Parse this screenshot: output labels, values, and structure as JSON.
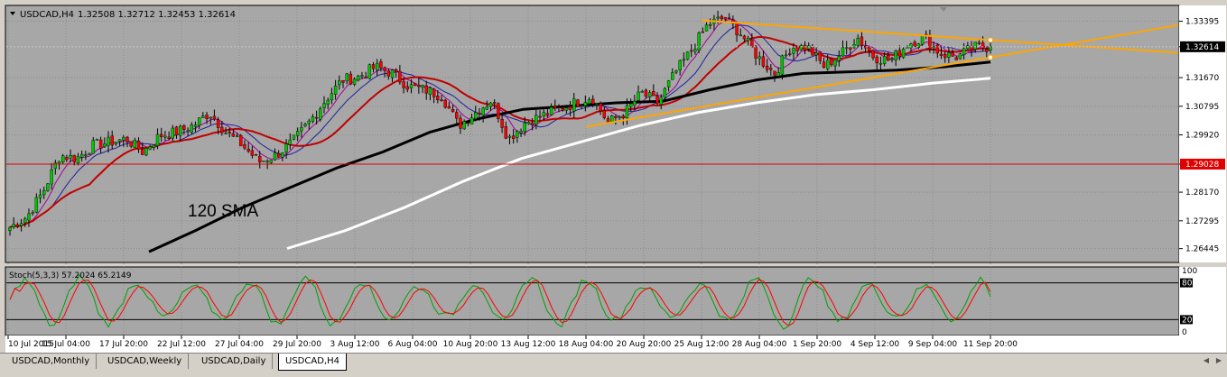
{
  "header": {
    "symbol": "USDCAD,H4",
    "ohlc": "1.32508 1.32712 1.32453 1.32614",
    "menu_icon": "triangle-down-icon"
  },
  "colors": {
    "background": "#a7a7a7",
    "bull_candle": "#00c800",
    "bear_candle": "#ff0000",
    "trendline": "#ffa500",
    "sma_black": "#000000",
    "sma_white": "#ffffff",
    "ma_red": "#c00000",
    "ma_blue": "#2020a0",
    "ma_purple": "#a000a0",
    "horizontal_level": "#dd0000",
    "price_label_bg": "#000000",
    "level_label_bg": "#e00000",
    "stoch_main": "#00a000",
    "stoch_signal": "#ff0000"
  },
  "annotation": "120 SMA",
  "tabs": [
    {
      "label": "USDCAD,Monthly",
      "active": false
    },
    {
      "label": "USDCAD,Weekly",
      "active": false
    },
    {
      "label": "USDCAD,Daily",
      "active": false
    },
    {
      "label": "USDCAD,H4",
      "active": true
    }
  ],
  "chart_data": {
    "type": "candlestick",
    "symbol": "USDCAD",
    "timeframe": "H4",
    "ylim": [
      1.2605,
      1.3385
    ],
    "y_ticks": [
      "1.33395",
      "1.32614",
      "1.31670",
      "1.30795",
      "1.29920",
      "1.29028",
      "1.28170",
      "1.27295",
      "1.26445"
    ],
    "current_price": "1.32614",
    "level_price": "1.29028",
    "x_ticks": [
      "10 Jul 2015",
      "15 Jul 04:00",
      "17 Jul 20:00",
      "22 Jul 12:00",
      "27 Jul 04:00",
      "29 Jul 20:00",
      "3 Aug 12:00",
      "6 Aug 04:00",
      "10 Aug 20:00",
      "13 Aug 12:00",
      "18 Aug 04:00",
      "20 Aug 20:00",
      "25 Aug 12:00",
      "28 Aug 04:00",
      "1 Sep 20:00",
      "4 Sep 12:00",
      "9 Sep 04:00",
      "11 Sep 20:00"
    ],
    "close_path": [
      1.271,
      1.274,
      1.282,
      1.293,
      1.292,
      1.296,
      1.297,
      1.298,
      1.294,
      1.299,
      1.3,
      1.302,
      1.306,
      1.3,
      1.296,
      1.291,
      1.293,
      1.297,
      1.303,
      1.31,
      1.316,
      1.317,
      1.32,
      1.318,
      1.314,
      1.313,
      1.311,
      1.302,
      1.306,
      1.31,
      1.298,
      1.303,
      1.305,
      1.307,
      1.309,
      1.311,
      1.303,
      1.306,
      1.312,
      1.309,
      1.318,
      1.325,
      1.333,
      1.335,
      1.33,
      1.323,
      1.318,
      1.326,
      1.326,
      1.32,
      1.324,
      1.329,
      1.323,
      1.322,
      1.327,
      1.329,
      1.324,
      1.323,
      1.326,
      1.3261
    ],
    "sma120": [
      1.2635,
      1.27,
      1.277,
      1.283,
      1.289,
      1.294,
      1.3,
      1.304,
      1.307,
      1.308,
      1.309,
      1.3095,
      1.313,
      1.316,
      1.318,
      1.3185,
      1.319,
      1.32,
      1.3215
    ],
    "sma_white": [
      1.2645,
      1.27,
      1.277,
      1.285,
      1.292,
      1.297,
      1.302,
      1.306,
      1.309,
      1.3115,
      1.313,
      1.315,
      1.3165
    ],
    "trendlines": [
      {
        "name": "upper",
        "from": [
          "25 Aug 12:00",
          1.3342
        ],
        "to": [
          "11 Sep 20:00",
          1.3282
        ],
        "extend": true
      },
      {
        "name": "lower",
        "from": [
          "18 Aug 04:00",
          1.3017
        ],
        "to": [
          "11 Sep 20:00",
          1.3229
        ],
        "extend": true
      }
    ],
    "stochastic": {
      "label": "Stoch(5,3,3) 57.2024 65.2149",
      "ylim": [
        0,
        100
      ],
      "levels": [
        "100",
        "80",
        "20",
        "0"
      ],
      "main": 57.2024,
      "signal": 65.2149
    }
  }
}
